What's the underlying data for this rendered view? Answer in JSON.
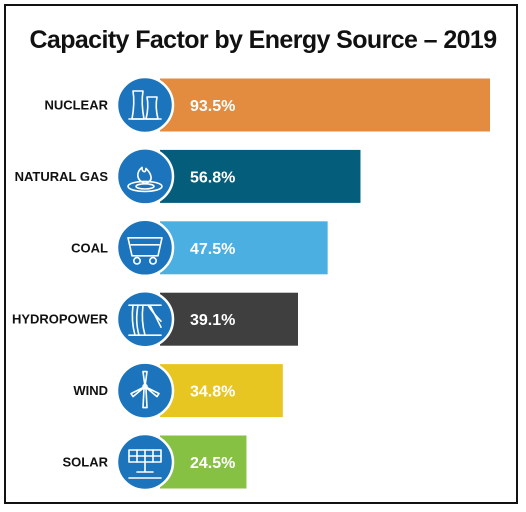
{
  "chart_data": {
    "type": "bar",
    "orientation": "horizontal",
    "title": "Capacity Factor by Energy Source – 2019",
    "categories": [
      "NUCLEAR",
      "NATURAL GAS",
      "COAL",
      "HYDROPOWER",
      "WIND",
      "SOLAR"
    ],
    "values": [
      93.5,
      56.8,
      47.5,
      39.1,
      34.8,
      24.5
    ],
    "value_labels": [
      "93.5%",
      "56.8%",
      "47.5%",
      "39.1%",
      "34.8%",
      "24.5%"
    ],
    "bar_colors": [
      "#E38B3F",
      "#045D7A",
      "#4BAFE2",
      "#3F3F3F",
      "#E8C621",
      "#87C144"
    ],
    "icon_names": [
      "nuclear-cooling-tower-icon",
      "gas-flame-icon",
      "coal-cart-icon",
      "hydropower-dam-icon",
      "wind-turbine-icon",
      "solar-panel-icon"
    ],
    "icon_circle_color": "#1C75BC",
    "xlim": [
      0,
      100
    ],
    "grid": false,
    "legend": "none"
  }
}
